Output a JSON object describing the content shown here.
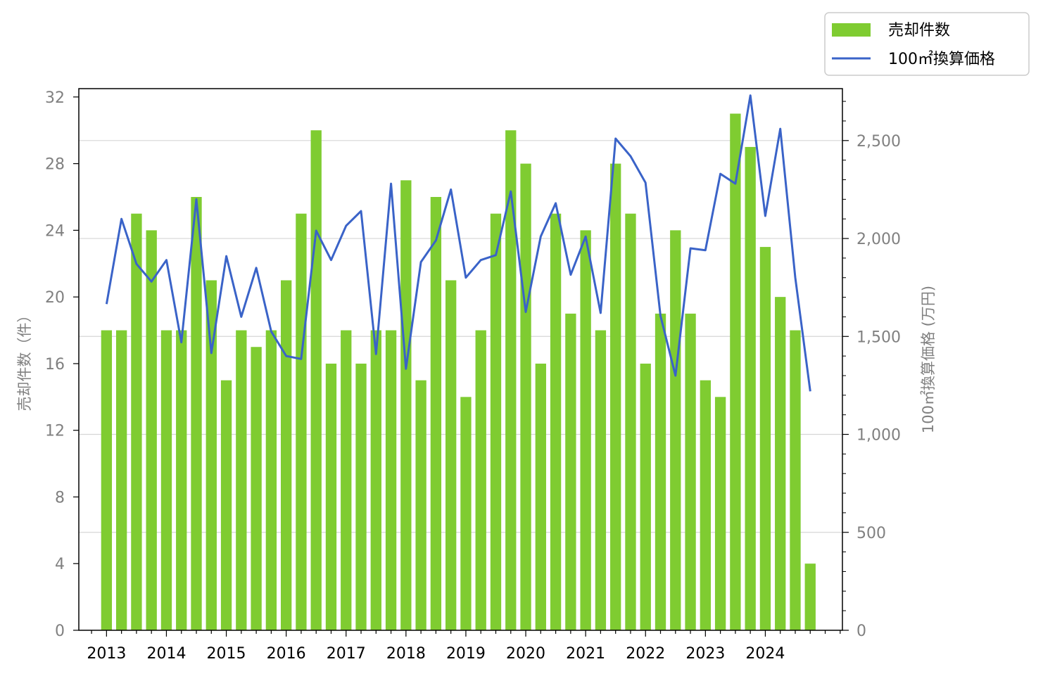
{
  "chart_data": {
    "type": "bar",
    "x_tick_labels": [
      "2013",
      "2014",
      "2015",
      "2016",
      "2017",
      "2018",
      "2019",
      "2020",
      "2021",
      "2022",
      "2023",
      "2024"
    ],
    "y_left": {
      "label": "売却件数（件）",
      "range": [
        0,
        32.5
      ],
      "ticks": [
        0,
        4,
        8,
        12,
        16,
        20,
        24,
        28,
        32
      ]
    },
    "y_right": {
      "label": "100㎡換算価格 (万円)",
      "range": [
        0,
        2765
      ],
      "ticks": [
        0,
        500,
        1000,
        1500,
        2000,
        2500
      ],
      "tick_labels": [
        "0",
        "500",
        "1,000",
        "1,500",
        "2,000",
        "2,500"
      ]
    },
    "grid": "horizontal (right axis)",
    "legend_position": "top-right",
    "series": [
      {
        "name": "売却件数",
        "type": "bar",
        "axis": "left",
        "color": "#7fcc31",
        "values": [
          18,
          18,
          25,
          24,
          18,
          18,
          26,
          21,
          15,
          18,
          17,
          18,
          21,
          25,
          30,
          16,
          18,
          16,
          18,
          18,
          27,
          15,
          26,
          21,
          14,
          18,
          25,
          30,
          28,
          16,
          25,
          19,
          24,
          18,
          28,
          25,
          16,
          19,
          24,
          19,
          15,
          14,
          31,
          29,
          23,
          20,
          18,
          4
        ]
      },
      {
        "name": "100㎡換算価格",
        "type": "line",
        "axis": "right",
        "color": "#3a63c8",
        "values": [
          1665,
          2100,
          1870,
          1780,
          1890,
          1470,
          2200,
          1415,
          1910,
          1600,
          1850,
          1525,
          1400,
          1385,
          2040,
          1890,
          2065,
          2140,
          1410,
          2280,
          1335,
          1880,
          1990,
          2250,
          1800,
          1890,
          1915,
          2240,
          1625,
          2010,
          2180,
          1815,
          2010,
          1620,
          2510,
          2420,
          2285,
          1605,
          1300,
          1950,
          1940,
          2330,
          2280,
          2730,
          2115,
          2560,
          1800,
          1220
        ]
      }
    ]
  }
}
